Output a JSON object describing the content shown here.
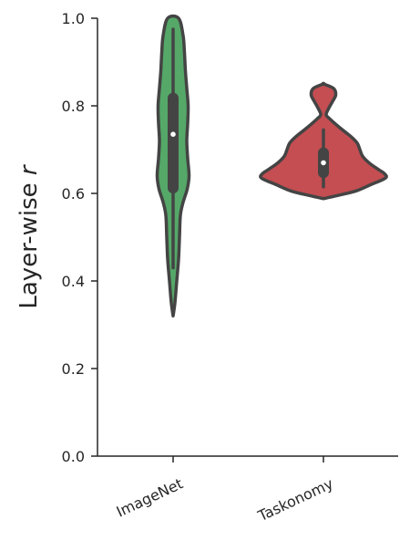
{
  "chart_data": {
    "type": "violin",
    "categories": [
      "ImageNet",
      "Taskonomy"
    ],
    "ylabel_text": "Layer-wise ",
    "ylabel_var": "r",
    "ylim": [
      0.0,
      1.0
    ],
    "yticks": [
      0.0,
      0.2,
      0.4,
      0.6,
      0.8,
      1.0
    ],
    "ytick_labels": [
      "0.0",
      "0.2",
      "0.4",
      "0.6",
      "0.8",
      "1.0"
    ],
    "grid": false,
    "colors": {
      "ImageNet": "#55a868",
      "Taskonomy": "#c44e52",
      "outline": "#444444",
      "box": "#444444",
      "median_dot": "#ffffff",
      "axis": "#262626"
    },
    "series": [
      {
        "name": "ImageNet",
        "median": 0.735,
        "q1": 0.6,
        "q3": 0.83,
        "whisker_low": 0.43,
        "whisker_high": 0.975,
        "profile": [
          [
            0.32,
            0.0
          ],
          [
            0.35,
            0.02
          ],
          [
            0.4,
            0.04
          ],
          [
            0.45,
            0.06
          ],
          [
            0.5,
            0.07
          ],
          [
            0.55,
            0.08
          ],
          [
            0.58,
            0.11
          ],
          [
            0.61,
            0.155
          ],
          [
            0.64,
            0.175
          ],
          [
            0.68,
            0.16
          ],
          [
            0.72,
            0.15
          ],
          [
            0.76,
            0.16
          ],
          [
            0.8,
            0.165
          ],
          [
            0.84,
            0.15
          ],
          [
            0.88,
            0.135
          ],
          [
            0.92,
            0.125
          ],
          [
            0.96,
            0.11
          ],
          [
            1.0,
            0.06
          ]
        ]
      },
      {
        "name": "Taskonomy",
        "median": 0.67,
        "q1": 0.635,
        "q3": 0.705,
        "whisker_low": 0.615,
        "whisker_high": 0.745,
        "profile": [
          [
            0.588,
            0.0
          ],
          [
            0.595,
            0.15
          ],
          [
            0.605,
            0.35
          ],
          [
            0.62,
            0.52
          ],
          [
            0.635,
            0.68
          ],
          [
            0.645,
            0.67
          ],
          [
            0.655,
            0.6
          ],
          [
            0.67,
            0.5
          ],
          [
            0.685,
            0.43
          ],
          [
            0.7,
            0.4
          ],
          [
            0.715,
            0.37
          ],
          [
            0.73,
            0.3
          ],
          [
            0.75,
            0.18
          ],
          [
            0.77,
            0.07
          ],
          [
            0.78,
            0.03
          ],
          [
            0.795,
            0.06
          ],
          [
            0.81,
            0.1
          ],
          [
            0.825,
            0.135
          ],
          [
            0.84,
            0.11
          ],
          [
            0.85,
            0.0
          ]
        ]
      }
    ]
  }
}
